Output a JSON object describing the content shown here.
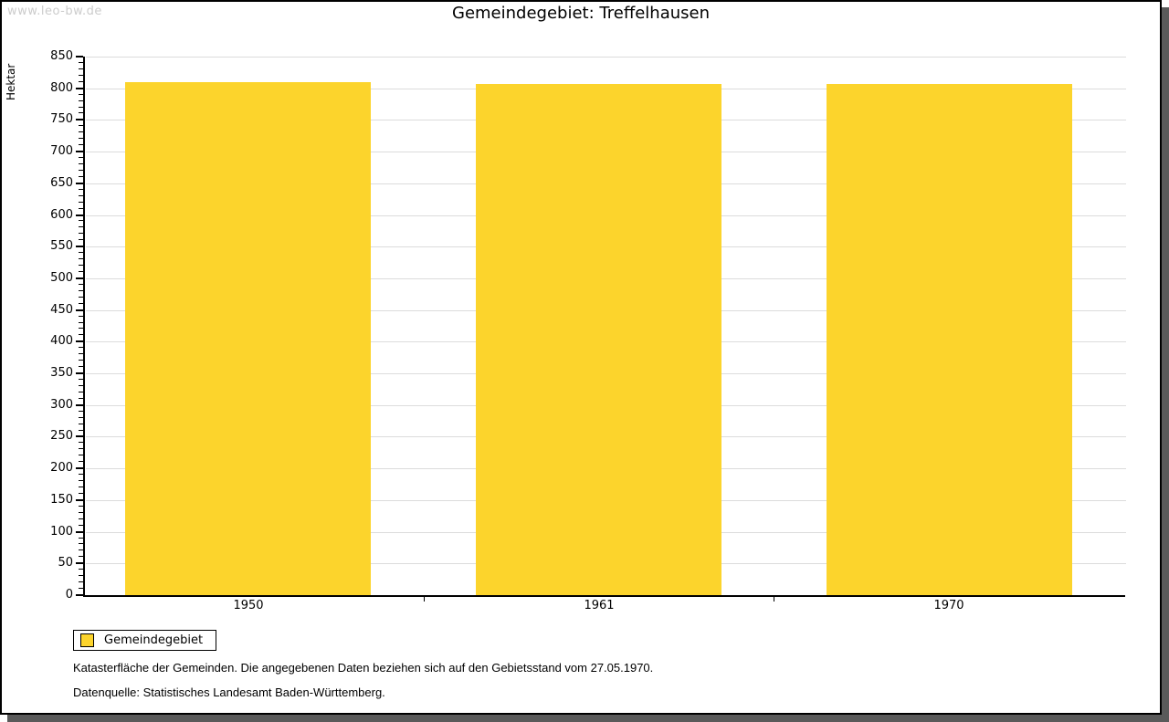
{
  "page": {
    "watermark": "www.leo-bw.de",
    "title": "Gemeindegebiet: Treffelhausen"
  },
  "chart_data": {
    "type": "bar",
    "title": "Gemeindegebiet: Treffelhausen",
    "categories": [
      "1950",
      "1961",
      "1970"
    ],
    "series": [
      {
        "name": "Gemeindegebiet",
        "values": [
          809,
          807,
          807
        ]
      }
    ],
    "xlabel": "",
    "ylabel": "Hektar",
    "ylim": [
      0,
      850
    ],
    "ytick_major_step": 50,
    "ytick_minor_step": 10,
    "grid": true,
    "legend_position": "bottom-left",
    "bar_color": "#FCD42C",
    "grid_color": "#DCDCDC",
    "axis_color": "#000000"
  },
  "legend": {
    "label": "Gemeindegebiet"
  },
  "footer": {
    "line1": "Katasterfläche der Gemeinden. Die angegebenen Daten beziehen sich auf den Gebietsstand vom 27.05.1970.",
    "line2": "Datenquelle: Statistisches Landesamt Baden-Württemberg."
  }
}
